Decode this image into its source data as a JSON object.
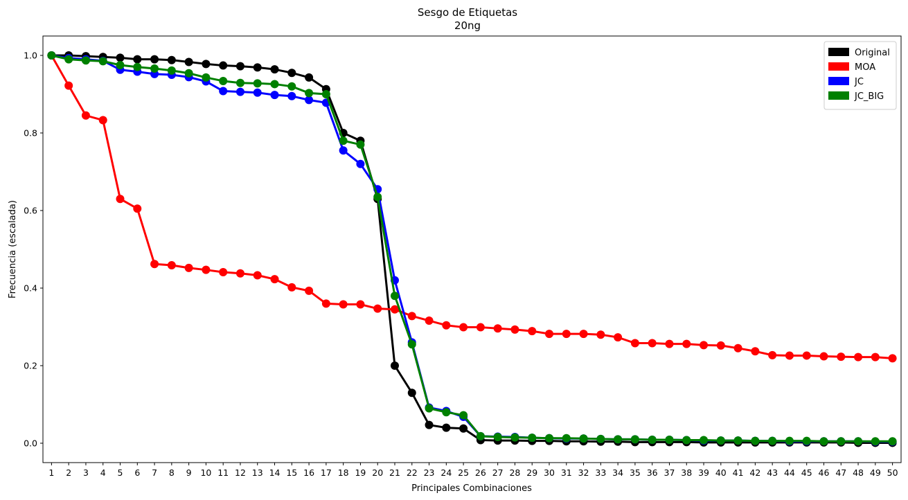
{
  "chart_data": {
    "type": "line",
    "title": "Sesgo de Etiquetas",
    "subtitle": "20ng",
    "xlabel": "Principales Combinaciones",
    "ylabel": "Frecuencia (escalada)",
    "x": [
      1,
      2,
      3,
      4,
      5,
      6,
      7,
      8,
      9,
      10,
      11,
      12,
      13,
      14,
      15,
      16,
      17,
      18,
      19,
      20,
      21,
      22,
      23,
      24,
      25,
      26,
      27,
      28,
      29,
      30,
      31,
      32,
      33,
      34,
      35,
      36,
      37,
      38,
      39,
      40,
      41,
      42,
      43,
      44,
      45,
      46,
      47,
      48,
      49,
      50
    ],
    "ylim": [
      -0.05,
      1.05
    ],
    "yticks": [
      "0.0",
      "0.2",
      "0.4",
      "0.6",
      "0.8",
      "1.0"
    ],
    "grid": false,
    "legend_position": "top-right",
    "series": [
      {
        "name": "Original",
        "color": "#000000",
        "values": [
          1.0,
          1.0,
          0.998,
          0.996,
          0.994,
          0.99,
          0.99,
          0.988,
          0.983,
          0.978,
          0.974,
          0.972,
          0.969,
          0.964,
          0.955,
          0.943,
          0.913,
          0.8,
          0.78,
          0.63,
          0.2,
          0.13,
          0.047,
          0.04,
          0.038,
          0.008,
          0.007,
          0.007,
          0.006,
          0.006,
          0.005,
          0.005,
          0.004,
          0.004,
          0.003,
          0.003,
          0.003,
          0.003,
          0.002,
          0.002,
          0.002,
          0.002,
          0.002,
          0.002,
          0.002,
          0.002,
          0.002,
          0.001,
          0.001,
          0.001
        ]
      },
      {
        "name": "MOA",
        "color": "#ff0000",
        "values": [
          1.0,
          0.922,
          0.845,
          0.833,
          0.63,
          0.605,
          0.462,
          0.459,
          0.452,
          0.447,
          0.441,
          0.438,
          0.433,
          0.423,
          0.402,
          0.393,
          0.36,
          0.358,
          0.358,
          0.347,
          0.345,
          0.328,
          0.316,
          0.304,
          0.299,
          0.299,
          0.296,
          0.293,
          0.289,
          0.282,
          0.282,
          0.282,
          0.28,
          0.273,
          0.258,
          0.258,
          0.256,
          0.256,
          0.253,
          0.252,
          0.245,
          0.237,
          0.227,
          0.226,
          0.226,
          0.224,
          0.223,
          0.222,
          0.222,
          0.219
        ]
      },
      {
        "name": "JC",
        "color": "#0000ff",
        "values": [
          1.0,
          0.993,
          0.99,
          0.986,
          0.963,
          0.958,
          0.952,
          0.95,
          0.944,
          0.933,
          0.908,
          0.906,
          0.904,
          0.898,
          0.895,
          0.885,
          0.878,
          0.755,
          0.72,
          0.655,
          0.42,
          0.26,
          0.092,
          0.083,
          0.068,
          0.018,
          0.017,
          0.016,
          0.014,
          0.013,
          0.012,
          0.012,
          0.011,
          0.01,
          0.01,
          0.009,
          0.009,
          0.008,
          0.007,
          0.007,
          0.007,
          0.006,
          0.006,
          0.005,
          0.005,
          0.005,
          0.005,
          0.005,
          0.004,
          0.004
        ]
      },
      {
        "name": "JC_BIG",
        "color": "#008000",
        "values": [
          1.0,
          0.99,
          0.987,
          0.985,
          0.975,
          0.97,
          0.966,
          0.961,
          0.954,
          0.943,
          0.934,
          0.929,
          0.928,
          0.926,
          0.92,
          0.903,
          0.9,
          0.78,
          0.77,
          0.635,
          0.38,
          0.255,
          0.09,
          0.08,
          0.072,
          0.018,
          0.016,
          0.015,
          0.014,
          0.013,
          0.013,
          0.012,
          0.011,
          0.01,
          0.01,
          0.009,
          0.009,
          0.008,
          0.008,
          0.007,
          0.007,
          0.006,
          0.006,
          0.006,
          0.006,
          0.005,
          0.005,
          0.005,
          0.005,
          0.005
        ]
      }
    ]
  }
}
